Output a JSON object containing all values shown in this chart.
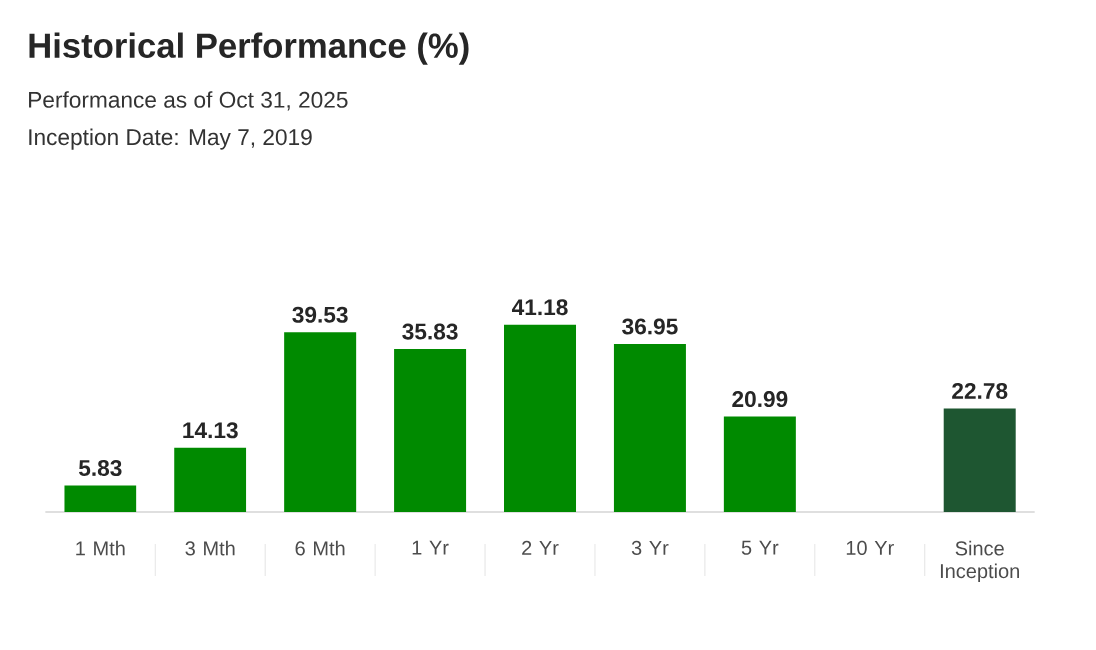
{
  "chart_data": {
    "type": "bar",
    "title": "Historical Performance (%)",
    "subtitle": "Performance as of Oct 31, 2025",
    "annotations": [
      "Inception Date: May 7, 2019"
    ],
    "categories": [
      "1 Mth",
      "3 Mth",
      "6 Mth",
      "1 Yr",
      "2 Yr",
      "3 Yr",
      "5 Yr",
      "10 Yr",
      "Since Inception"
    ],
    "values": [
      5.83,
      14.13,
      39.53,
      35.83,
      41.18,
      36.95,
      20.99,
      null,
      22.78
    ],
    "colors": [
      "#008a00",
      "#008a00",
      "#008a00",
      "#008a00",
      "#008a00",
      "#008a00",
      "#008a00",
      "#008a00",
      "#1e5631"
    ],
    "data_labels": true
  }
}
